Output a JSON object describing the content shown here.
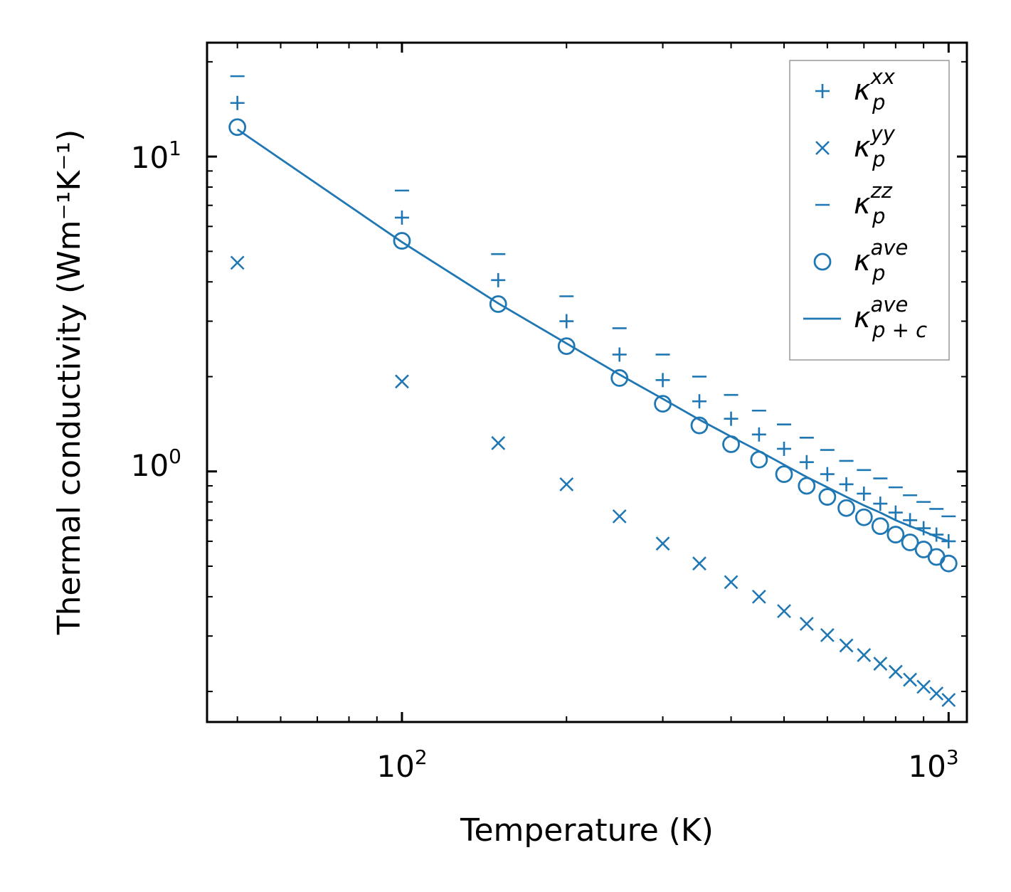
{
  "chart_data": {
    "type": "scatter",
    "title": "",
    "xlabel": "Temperature (K)",
    "ylabel": "Thermal conductivity (Wm⁻¹K⁻¹)",
    "xscale": "log",
    "yscale": "log",
    "xlim": [
      44,
      1080
    ],
    "ylim": [
      0.16,
      23
    ],
    "x_ticks": [
      {
        "base": "10",
        "exp": "2",
        "value": 100
      },
      {
        "base": "10",
        "exp": "3",
        "value": 1000
      }
    ],
    "y_ticks": [
      {
        "base": "10",
        "exp": "0",
        "value": 1
      },
      {
        "base": "10",
        "exp": "1",
        "value": 10
      }
    ],
    "x": [
      50,
      100,
      150,
      200,
      250,
      300,
      350,
      400,
      450,
      500,
      550,
      600,
      650,
      700,
      750,
      800,
      850,
      900,
      950,
      1000
    ],
    "series": [
      {
        "name": "kxx",
        "legend": {
          "base": "κ",
          "sub": "p",
          "sup": "xx"
        },
        "marker": "plus",
        "values": [
          14.8,
          6.4,
          4.05,
          3.0,
          2.35,
          1.95,
          1.67,
          1.47,
          1.31,
          1.18,
          1.07,
          0.98,
          0.91,
          0.85,
          0.79,
          0.74,
          0.7,
          0.66,
          0.63,
          0.6
        ]
      },
      {
        "name": "kyy",
        "legend": {
          "base": "κ",
          "sub": "p",
          "sup": "yy"
        },
        "marker": "x",
        "values": [
          4.6,
          1.93,
          1.23,
          0.91,
          0.72,
          0.59,
          0.51,
          0.445,
          0.4,
          0.36,
          0.328,
          0.302,
          0.28,
          0.261,
          0.245,
          0.231,
          0.218,
          0.207,
          0.197,
          0.188
        ]
      },
      {
        "name": "kzz",
        "legend": {
          "base": "κ",
          "sub": "p",
          "sup": "zz"
        },
        "marker": "hline",
        "values": [
          18.0,
          7.8,
          4.9,
          3.6,
          2.85,
          2.35,
          2.0,
          1.75,
          1.56,
          1.41,
          1.28,
          1.17,
          1.08,
          1.01,
          0.95,
          0.89,
          0.84,
          0.8,
          0.76,
          0.72
        ]
      },
      {
        "name": "kave",
        "legend": {
          "base": "κ",
          "sub": "p",
          "sup": "ave"
        },
        "marker": "circle",
        "values": [
          12.4,
          5.4,
          3.4,
          2.5,
          1.98,
          1.64,
          1.4,
          1.22,
          1.09,
          0.98,
          0.9,
          0.83,
          0.765,
          0.715,
          0.67,
          0.63,
          0.595,
          0.565,
          0.535,
          0.51
        ]
      },
      {
        "name": "kave_pc",
        "legend": {
          "base": "κ",
          "sub": "p + c",
          "sup": "ave"
        },
        "marker": "line",
        "values": [
          12.2,
          5.35,
          3.42,
          2.55,
          2.03,
          1.7,
          1.46,
          1.29,
          1.16,
          1.05,
          0.96,
          0.89,
          0.83,
          0.78,
          0.74,
          0.7,
          0.67,
          0.645,
          0.62,
          0.6
        ]
      }
    ],
    "colors": {
      "series": "#1f77b4",
      "axis": "#000000",
      "legend_border": "#999999"
    },
    "legend_position": "top-right",
    "grid": false
  }
}
